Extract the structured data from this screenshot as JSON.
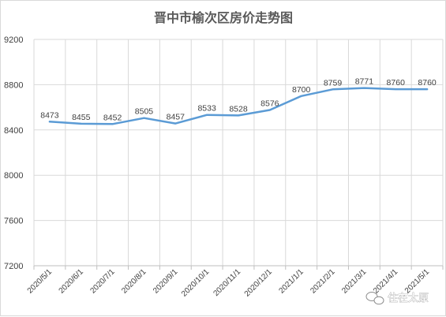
{
  "chart_data": {
    "type": "line",
    "title": "晋中市榆次区房价走势图",
    "categories": [
      "2020/5/1",
      "2020/6/1",
      "2020/7/1",
      "2020/8/1",
      "2020/9/1",
      "2020/10/1",
      "2020/11/1",
      "2020/12/1",
      "2021/1/1",
      "2021/2/1",
      "2021/3/1",
      "2021/4/1",
      "2021/5/1"
    ],
    "values": [
      8473,
      8455,
      8452,
      8505,
      8457,
      8533,
      8528,
      8576,
      8700,
      8759,
      8771,
      8760,
      8760
    ],
    "ylim": [
      7200,
      9200
    ],
    "yticks": [
      7200,
      7600,
      8000,
      8400,
      8800,
      9200
    ],
    "grid": true,
    "legend": "none",
    "series_color": "#5b9bd5"
  },
  "watermark": {
    "text": "住在太原",
    "icon": "wechat-icon"
  }
}
